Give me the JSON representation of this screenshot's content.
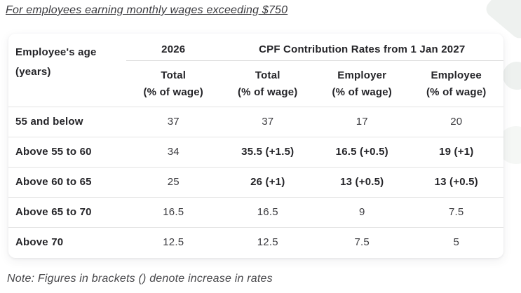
{
  "page": {
    "title": "For employees earning monthly wages exceeding $750",
    "note": "Note: Figures in brackets () denote increase in rates"
  },
  "table": {
    "header": {
      "age_line1": "Employee's age",
      "age_line2": "(years)",
      "year_2026": "2026",
      "rates_2027": "CPF Contribution Rates from 1 Jan 2027",
      "subheaders": [
        {
          "label": "Total",
          "sub": "(% of wage)"
        },
        {
          "label": "Total",
          "sub": "(% of wage)"
        },
        {
          "label": "Employer",
          "sub": "(% of wage)"
        },
        {
          "label": "Employee",
          "sub": "(% of wage)"
        }
      ]
    },
    "rows": [
      {
        "age": "55 and below",
        "values": [
          "37",
          "37",
          "17",
          "20"
        ],
        "emphasized": [
          false,
          false,
          false,
          false
        ]
      },
      {
        "age": "Above 55 to 60",
        "values": [
          "34",
          "35.5 (+1.5)",
          "16.5 (+0.5)",
          "19 (+1)"
        ],
        "emphasized": [
          false,
          true,
          true,
          true
        ]
      },
      {
        "age": "Above 60 to 65",
        "values": [
          "25",
          "26 (+1)",
          "13 (+0.5)",
          "13 (+0.5)"
        ],
        "emphasized": [
          false,
          true,
          true,
          true
        ]
      },
      {
        "age": "Above 65 to 70",
        "values": [
          "16.5",
          "16.5",
          "9",
          "7.5"
        ],
        "emphasized": [
          false,
          false,
          false,
          false
        ]
      },
      {
        "age": "Above 70",
        "values": [
          "12.5",
          "12.5",
          "7.5",
          "5"
        ],
        "emphasized": [
          false,
          false,
          false,
          false
        ]
      }
    ]
  },
  "colors": {
    "text_dark": "#242428",
    "text_regular": "#3c3c40",
    "muted_text": "#47474a",
    "row_line": "#e4e4e4",
    "header_line": "#dcdcdc",
    "card_bg": "#ffffff",
    "page_bg": "#ffffff",
    "decor": "#eef1ef"
  }
}
